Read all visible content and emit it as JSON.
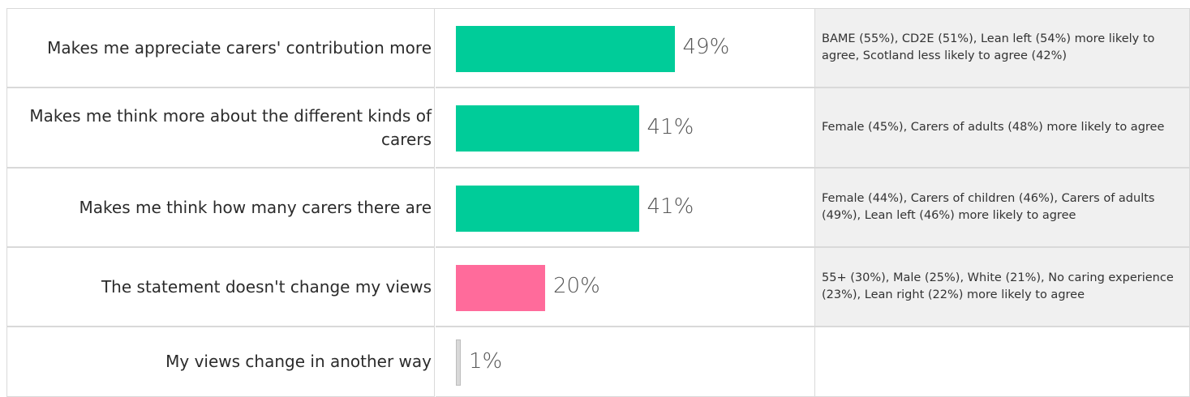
{
  "chart_data": {
    "type": "bar",
    "orientation": "horizontal",
    "xlim": [
      0,
      100
    ],
    "categories": [
      "Makes me appreciate carers' contribution more",
      "Makes me think more about the different kinds of carers",
      "Makes me think how many carers there are",
      "The statement doesn't change my views",
      "My views change in another way"
    ],
    "values": [
      49,
      41,
      41,
      20,
      1
    ],
    "value_labels": [
      "49%",
      "41%",
      "41%",
      "20%",
      "1%"
    ],
    "bar_colors": [
      "#00cc99",
      "#00cc99",
      "#00cc99",
      "#ff6b9b",
      "#d9d9d9"
    ],
    "notes": [
      "BAME (55%), CD2E (51%), Lean left (54%) more likely to agree, Scotland less likely to agree (42%)",
      "Female (45%), Carers of adults (48%) more likely to agree",
      "Female (44%), Carers of children (46%), Carers of adults (49%), Lean left (46%) more likely to agree",
      "55+ (30%), Male (25%), White (21%), No caring experience (23%), Lean right (22%) more likely to agree",
      ""
    ]
  }
}
